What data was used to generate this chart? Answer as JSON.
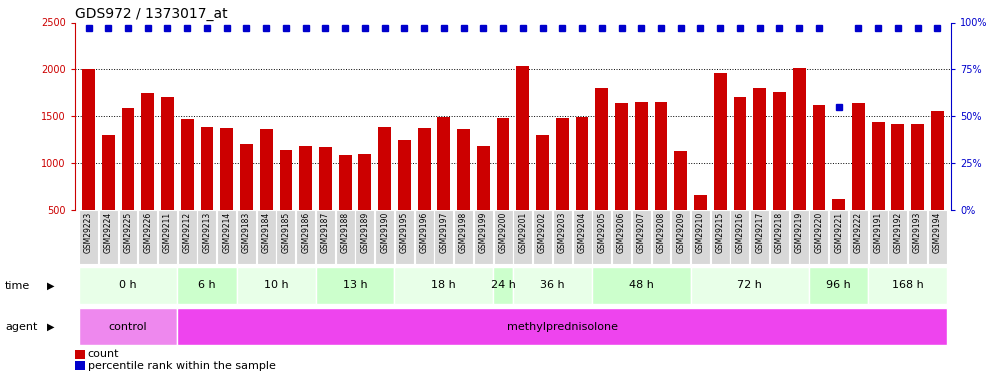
{
  "title": "GDS972 / 1373017_at",
  "samples": [
    "GSM29223",
    "GSM29224",
    "GSM29225",
    "GSM29226",
    "GSM29211",
    "GSM29212",
    "GSM29213",
    "GSM29214",
    "GSM29183",
    "GSM29184",
    "GSM29185",
    "GSM29186",
    "GSM29187",
    "GSM29188",
    "GSM29189",
    "GSM29190",
    "GSM29195",
    "GSM29196",
    "GSM29197",
    "GSM29198",
    "GSM29199",
    "GSM29200",
    "GSM29201",
    "GSM29202",
    "GSM29203",
    "GSM29204",
    "GSM29205",
    "GSM29206",
    "GSM29207",
    "GSM29208",
    "GSM29209",
    "GSM29210",
    "GSM29215",
    "GSM29216",
    "GSM29217",
    "GSM29218",
    "GSM29219",
    "GSM29220",
    "GSM29221",
    "GSM29222",
    "GSM29191",
    "GSM29192",
    "GSM29193",
    "GSM29194"
  ],
  "bar_values": [
    2000,
    1300,
    1590,
    1750,
    1710,
    1470,
    1390,
    1370,
    1200,
    1360,
    1140,
    1185,
    1170,
    1090,
    1100,
    1390,
    1250,
    1375,
    1490,
    1360,
    1180,
    1480,
    2040,
    1300,
    1480,
    1490,
    1800,
    1640,
    1650,
    1650,
    1130,
    660,
    1960,
    1710,
    1800,
    1760,
    2020,
    1620,
    620,
    1640,
    1440,
    1420,
    1420,
    1560
  ],
  "percentile_values": [
    97,
    97,
    97,
    97,
    97,
    97,
    97,
    97,
    97,
    97,
    97,
    97,
    97,
    97,
    97,
    97,
    97,
    97,
    97,
    97,
    97,
    97,
    97,
    97,
    97,
    97,
    97,
    97,
    97,
    97,
    97,
    97,
    97,
    97,
    97,
    97,
    97,
    97,
    55,
    97,
    97,
    97,
    97,
    97
  ],
  "time_groups": [
    {
      "label": "0 h",
      "start": 0,
      "end": 5,
      "color": "#e8ffe8"
    },
    {
      "label": "6 h",
      "start": 5,
      "end": 8,
      "color": "#ccffcc"
    },
    {
      "label": "10 h",
      "start": 8,
      "end": 12,
      "color": "#e8ffe8"
    },
    {
      "label": "13 h",
      "start": 12,
      "end": 16,
      "color": "#ccffcc"
    },
    {
      "label": "18 h",
      "start": 16,
      "end": 21,
      "color": "#e8ffe8"
    },
    {
      "label": "24 h",
      "start": 21,
      "end": 22,
      "color": "#ccffcc"
    },
    {
      "label": "36 h",
      "start": 22,
      "end": 26,
      "color": "#e8ffe8"
    },
    {
      "label": "48 h",
      "start": 26,
      "end": 31,
      "color": "#ccffcc"
    },
    {
      "label": "72 h",
      "start": 31,
      "end": 37,
      "color": "#e8ffe8"
    },
    {
      "label": "96 h",
      "start": 37,
      "end": 40,
      "color": "#ccffcc"
    },
    {
      "label": "168 h",
      "start": 40,
      "end": 44,
      "color": "#e8ffe8"
    }
  ],
  "agent_groups": [
    {
      "label": "control",
      "start": 0,
      "end": 5,
      "color": "#ee88ee"
    },
    {
      "label": "methylprednisolone",
      "start": 5,
      "end": 44,
      "color": "#ee44ee"
    }
  ],
  "bar_color": "#cc0000",
  "percentile_color": "#0000cc",
  "ylim_left": [
    500,
    2500
  ],
  "ylim_right": [
    0,
    100
  ],
  "yticks_left": [
    500,
    1000,
    1500,
    2000,
    2500
  ],
  "yticks_right": [
    0,
    25,
    50,
    75,
    100
  ],
  "dotted_line_values": [
    1000,
    1500,
    2000
  ],
  "background_color": "#ffffff",
  "title_fontsize": 10,
  "tick_fontsize": 7,
  "sample_fontsize": 5.5,
  "row_fontsize": 8
}
